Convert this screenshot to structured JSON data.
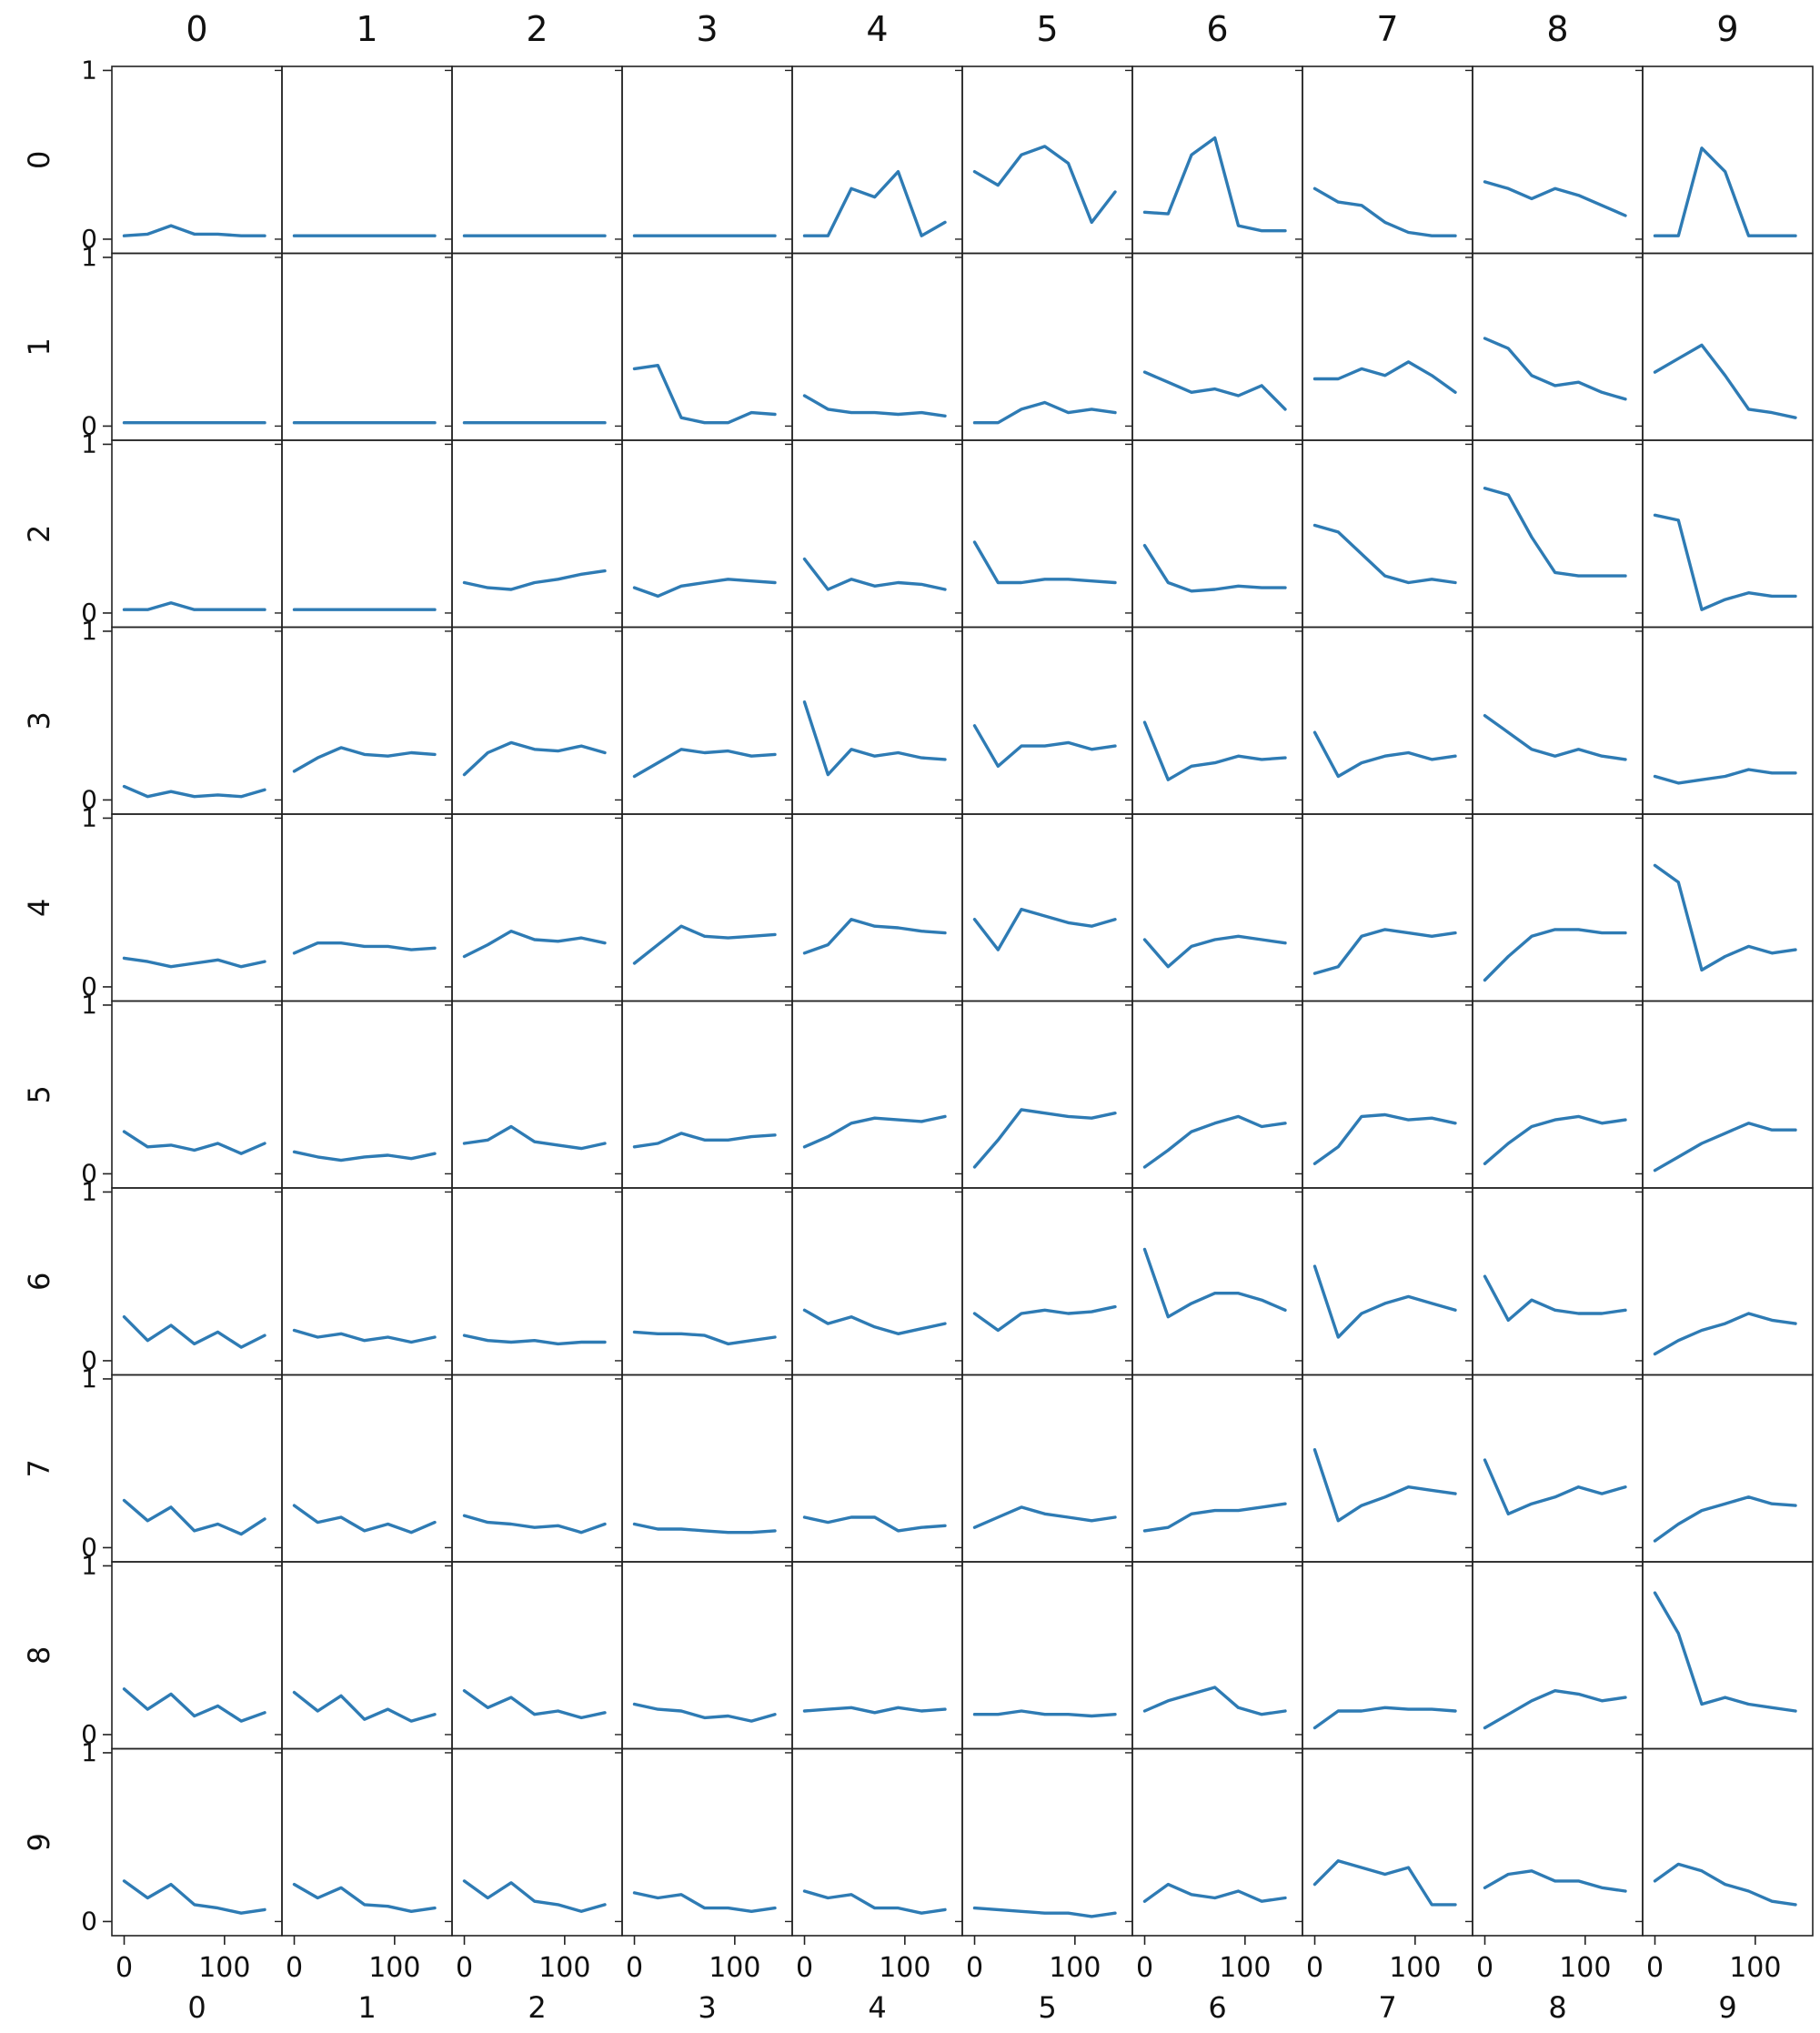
{
  "chart_data": {
    "type": "line",
    "layout": "small-multiples-grid",
    "row_labels": [
      "0",
      "1",
      "2",
      "3",
      "4",
      "5",
      "6",
      "7",
      "8",
      "9"
    ],
    "col_labels": [
      "0",
      "1",
      "2",
      "3",
      "4",
      "5",
      "6",
      "7",
      "8",
      "9"
    ],
    "x_tick_labels": [
      "0",
      "100"
    ],
    "x_ticks": [
      0,
      100
    ],
    "y_tick_labels": [
      "0",
      "1"
    ],
    "y_ticks": [
      0,
      1
    ],
    "xlim": [
      -5,
      150
    ],
    "ylim": [
      -0.03,
      0.97
    ],
    "x_max": 140,
    "grid": false,
    "line_color": "#2e7bb4",
    "cells": {
      "0": [
        [
          0.02,
          0.03,
          0.08,
          0.03,
          0.03,
          0.02,
          0.02
        ],
        [
          0.02,
          0.02,
          0.02,
          0.02,
          0.02,
          0.02,
          0.02
        ],
        [
          0.02,
          0.02,
          0.06,
          0.02,
          0.02,
          0.02,
          0.02
        ],
        [
          0.08,
          0.02,
          0.05,
          0.02,
          0.03,
          0.02,
          0.06
        ],
        [
          0.17,
          0.15,
          0.12,
          0.14,
          0.16,
          0.12,
          0.15
        ],
        [
          0.25,
          0.16,
          0.17,
          0.14,
          0.18,
          0.12,
          0.18
        ],
        [
          0.26,
          0.12,
          0.21,
          0.1,
          0.17,
          0.08,
          0.15
        ],
        [
          0.28,
          0.16,
          0.24,
          0.1,
          0.14,
          0.08,
          0.17
        ],
        [
          0.27,
          0.15,
          0.24,
          0.11,
          0.17,
          0.08,
          0.13
        ],
        [
          0.24,
          0.14,
          0.22,
          0.1,
          0.08,
          0.05,
          0.07
        ]
      ],
      "1": [
        [
          0.02,
          0.02,
          0.02,
          0.02,
          0.02,
          0.02,
          0.02
        ],
        [
          0.02,
          0.02,
          0.02,
          0.02,
          0.02,
          0.02,
          0.02
        ],
        [
          0.02,
          0.02,
          0.02,
          0.02,
          0.02,
          0.02,
          0.02
        ],
        [
          0.17,
          0.25,
          0.31,
          0.27,
          0.26,
          0.28,
          0.27
        ],
        [
          0.2,
          0.26,
          0.26,
          0.24,
          0.24,
          0.22,
          0.23
        ],
        [
          0.13,
          0.1,
          0.08,
          0.1,
          0.11,
          0.09,
          0.12
        ],
        [
          0.18,
          0.14,
          0.16,
          0.12,
          0.14,
          0.11,
          0.14
        ],
        [
          0.25,
          0.15,
          0.18,
          0.1,
          0.14,
          0.09,
          0.15
        ],
        [
          0.25,
          0.14,
          0.23,
          0.09,
          0.15,
          0.08,
          0.12
        ],
        [
          0.22,
          0.14,
          0.2,
          0.1,
          0.09,
          0.06,
          0.08
        ]
      ],
      "2": [
        [
          0.02,
          0.02,
          0.02,
          0.02,
          0.02,
          0.02,
          0.02
        ],
        [
          0.02,
          0.02,
          0.02,
          0.02,
          0.02,
          0.02,
          0.02
        ],
        [
          0.18,
          0.15,
          0.14,
          0.18,
          0.2,
          0.23,
          0.25
        ],
        [
          0.15,
          0.28,
          0.34,
          0.3,
          0.29,
          0.32,
          0.28
        ],
        [
          0.18,
          0.25,
          0.33,
          0.28,
          0.27,
          0.29,
          0.26
        ],
        [
          0.18,
          0.2,
          0.28,
          0.19,
          0.17,
          0.15,
          0.18
        ],
        [
          0.15,
          0.12,
          0.11,
          0.12,
          0.1,
          0.11,
          0.11
        ],
        [
          0.19,
          0.15,
          0.14,
          0.12,
          0.13,
          0.09,
          0.14
        ],
        [
          0.26,
          0.16,
          0.22,
          0.12,
          0.14,
          0.1,
          0.13
        ],
        [
          0.24,
          0.14,
          0.23,
          0.12,
          0.1,
          0.06,
          0.1
        ]
      ],
      "3": [
        [
          0.02,
          0.02,
          0.02,
          0.02,
          0.02,
          0.02,
          0.02
        ],
        [
          0.34,
          0.36,
          0.05,
          0.02,
          0.02,
          0.08,
          0.07
        ],
        [
          0.15,
          0.1,
          0.16,
          0.18,
          0.2,
          0.19,
          0.18
        ],
        [
          0.14,
          0.22,
          0.3,
          0.28,
          0.29,
          0.26,
          0.27
        ],
        [
          0.14,
          0.25,
          0.36,
          0.3,
          0.29,
          0.3,
          0.31
        ],
        [
          0.16,
          0.18,
          0.24,
          0.2,
          0.2,
          0.22,
          0.23
        ],
        [
          0.17,
          0.16,
          0.16,
          0.15,
          0.1,
          0.12,
          0.14
        ],
        [
          0.14,
          0.11,
          0.11,
          0.1,
          0.09,
          0.09,
          0.1
        ],
        [
          0.18,
          0.15,
          0.14,
          0.1,
          0.11,
          0.08,
          0.12
        ],
        [
          0.17,
          0.14,
          0.16,
          0.08,
          0.08,
          0.06,
          0.08
        ]
      ],
      "4": [
        [
          0.02,
          0.02,
          0.3,
          0.25,
          0.4,
          0.02,
          0.1
        ],
        [
          0.18,
          0.1,
          0.08,
          0.08,
          0.07,
          0.08,
          0.06
        ],
        [
          0.32,
          0.14,
          0.2,
          0.16,
          0.18,
          0.17,
          0.14
        ],
        [
          0.58,
          0.15,
          0.3,
          0.26,
          0.28,
          0.25,
          0.24
        ],
        [
          0.2,
          0.25,
          0.4,
          0.36,
          0.35,
          0.33,
          0.32
        ],
        [
          0.16,
          0.22,
          0.3,
          0.33,
          0.32,
          0.31,
          0.34
        ],
        [
          0.3,
          0.22,
          0.26,
          0.2,
          0.16,
          0.19,
          0.22
        ],
        [
          0.18,
          0.15,
          0.18,
          0.18,
          0.1,
          0.12,
          0.13
        ],
        [
          0.14,
          0.15,
          0.16,
          0.13,
          0.16,
          0.14,
          0.15
        ],
        [
          0.18,
          0.14,
          0.16,
          0.08,
          0.08,
          0.05,
          0.07
        ]
      ],
      "5": [
        [
          0.4,
          0.32,
          0.5,
          0.55,
          0.45,
          0.1,
          0.28
        ],
        [
          0.02,
          0.02,
          0.1,
          0.14,
          0.08,
          0.1,
          0.08
        ],
        [
          0.42,
          0.18,
          0.18,
          0.2,
          0.2,
          0.19,
          0.18
        ],
        [
          0.44,
          0.2,
          0.32,
          0.32,
          0.34,
          0.3,
          0.32
        ],
        [
          0.4,
          0.22,
          0.46,
          0.42,
          0.38,
          0.36,
          0.4
        ],
        [
          0.04,
          0.2,
          0.38,
          0.36,
          0.34,
          0.33,
          0.36
        ],
        [
          0.28,
          0.18,
          0.28,
          0.3,
          0.28,
          0.29,
          0.32
        ],
        [
          0.12,
          0.18,
          0.24,
          0.2,
          0.18,
          0.16,
          0.18
        ],
        [
          0.12,
          0.12,
          0.14,
          0.12,
          0.12,
          0.11,
          0.12
        ],
        [
          0.08,
          0.07,
          0.06,
          0.05,
          0.05,
          0.03,
          0.05
        ]
      ],
      "6": [
        [
          0.16,
          0.15,
          0.5,
          0.6,
          0.08,
          0.05,
          0.05
        ],
        [
          0.32,
          0.26,
          0.2,
          0.22,
          0.18,
          0.24,
          0.1
        ],
        [
          0.4,
          0.18,
          0.13,
          0.14,
          0.16,
          0.15,
          0.15
        ],
        [
          0.46,
          0.12,
          0.2,
          0.22,
          0.26,
          0.24,
          0.25
        ],
        [
          0.28,
          0.12,
          0.24,
          0.28,
          0.3,
          0.28,
          0.26
        ],
        [
          0.04,
          0.14,
          0.25,
          0.3,
          0.34,
          0.28,
          0.3
        ],
        [
          0.66,
          0.26,
          0.34,
          0.4,
          0.4,
          0.36,
          0.3
        ],
        [
          0.1,
          0.12,
          0.2,
          0.22,
          0.22,
          0.24,
          0.26
        ],
        [
          0.14,
          0.2,
          0.24,
          0.28,
          0.16,
          0.12,
          0.14
        ],
        [
          0.12,
          0.22,
          0.16,
          0.14,
          0.18,
          0.12,
          0.14
        ]
      ],
      "7": [
        [
          0.3,
          0.22,
          0.2,
          0.1,
          0.04,
          0.02,
          0.02
        ],
        [
          0.28,
          0.28,
          0.34,
          0.3,
          0.38,
          0.3,
          0.2
        ],
        [
          0.52,
          0.48,
          0.35,
          0.22,
          0.18,
          0.2,
          0.18
        ],
        [
          0.4,
          0.14,
          0.22,
          0.26,
          0.28,
          0.24,
          0.26
        ],
        [
          0.08,
          0.12,
          0.3,
          0.34,
          0.32,
          0.3,
          0.32
        ],
        [
          0.06,
          0.16,
          0.34,
          0.35,
          0.32,
          0.33,
          0.3
        ],
        [
          0.56,
          0.14,
          0.28,
          0.34,
          0.38,
          0.34,
          0.3
        ],
        [
          0.58,
          0.16,
          0.25,
          0.3,
          0.36,
          0.34,
          0.32
        ],
        [
          0.04,
          0.14,
          0.14,
          0.16,
          0.15,
          0.15,
          0.14
        ],
        [
          0.22,
          0.36,
          0.32,
          0.28,
          0.32,
          0.1,
          0.1
        ]
      ],
      "8": [
        [
          0.34,
          0.3,
          0.24,
          0.3,
          0.26,
          0.2,
          0.14
        ],
        [
          0.52,
          0.46,
          0.3,
          0.24,
          0.26,
          0.2,
          0.16
        ],
        [
          0.74,
          0.7,
          0.45,
          0.24,
          0.22,
          0.22,
          0.22
        ],
        [
          0.5,
          0.4,
          0.3,
          0.26,
          0.3,
          0.26,
          0.24
        ],
        [
          0.04,
          0.18,
          0.3,
          0.34,
          0.34,
          0.32,
          0.32
        ],
        [
          0.06,
          0.18,
          0.28,
          0.32,
          0.34,
          0.3,
          0.32
        ],
        [
          0.5,
          0.24,
          0.36,
          0.3,
          0.28,
          0.28,
          0.3
        ],
        [
          0.52,
          0.2,
          0.26,
          0.3,
          0.36,
          0.32,
          0.36
        ],
        [
          0.04,
          0.12,
          0.2,
          0.26,
          0.24,
          0.2,
          0.22
        ],
        [
          0.2,
          0.28,
          0.3,
          0.24,
          0.24,
          0.2,
          0.18
        ]
      ],
      "9": [
        [
          0.02,
          0.02,
          0.54,
          0.4,
          0.02,
          0.02,
          0.02
        ],
        [
          0.32,
          0.4,
          0.48,
          0.3,
          0.1,
          0.08,
          0.05
        ],
        [
          0.58,
          0.55,
          0.02,
          0.08,
          0.12,
          0.1,
          0.1
        ],
        [
          0.14,
          0.1,
          0.12,
          0.14,
          0.18,
          0.16,
          0.16
        ],
        [
          0.72,
          0.62,
          0.1,
          0.18,
          0.24,
          0.2,
          0.22
        ],
        [
          0.02,
          0.1,
          0.18,
          0.24,
          0.3,
          0.26,
          0.26
        ],
        [
          0.04,
          0.12,
          0.18,
          0.22,
          0.28,
          0.24,
          0.22
        ],
        [
          0.04,
          0.14,
          0.22,
          0.26,
          0.3,
          0.26,
          0.25
        ],
        [
          0.84,
          0.6,
          0.18,
          0.22,
          0.18,
          0.16,
          0.14
        ],
        [
          0.24,
          0.34,
          0.3,
          0.22,
          0.18,
          0.12,
          0.1
        ]
      ]
    }
  }
}
